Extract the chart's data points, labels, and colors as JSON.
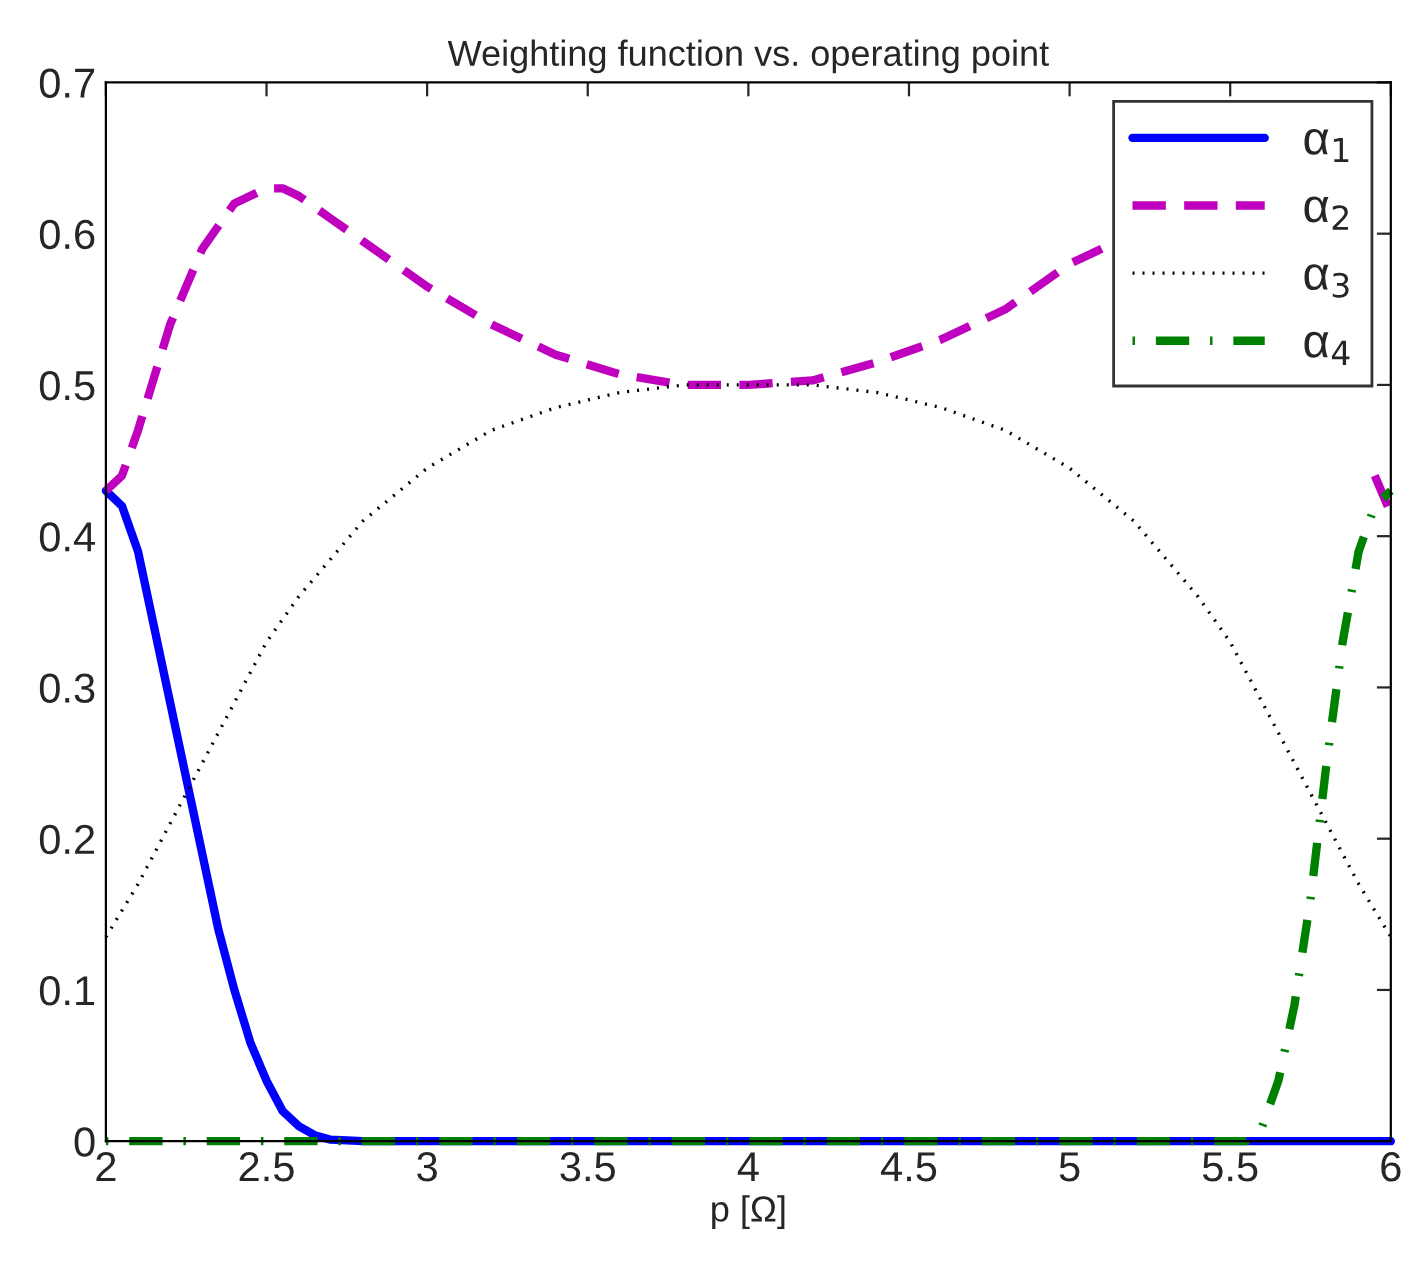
{
  "chart_data": {
    "type": "line",
    "title": "Weighting function vs. operating point",
    "xlabel": "p [Ω]",
    "xlim": [
      2,
      6
    ],
    "xticks": [
      2,
      2.5,
      3,
      3.5,
      4,
      4.5,
      5,
      5.5,
      6
    ],
    "ylim": [
      0,
      0.7
    ],
    "yticks": [
      0,
      0.1,
      0.2,
      0.3,
      0.4,
      0.5,
      0.6,
      0.7
    ],
    "grid": false,
    "legend": "top right",
    "marker": "none",
    "series": [
      {
        "name": "α$_{1}$",
        "color": "#0000ff",
        "line_style": "solid",
        "x": [
          2,
          2.05,
          2.1,
          2.15,
          2.2,
          2.25,
          2.3,
          2.35,
          2.4,
          2.45,
          2.5,
          2.55,
          2.6,
          2.65,
          2.7,
          2.8,
          3,
          4,
          5,
          6
        ],
        "values": [
          0.43,
          0.42,
          0.39,
          0.34,
          0.29,
          0.24,
          0.19,
          0.14,
          0.1,
          0.065,
          0.04,
          0.02,
          0.01,
          0.004,
          0.001,
          0,
          0,
          0,
          0,
          0
        ]
      },
      {
        "name": "α$_{2}$",
        "color": "#bf00bf",
        "line_style": "dashed",
        "x": [
          2,
          2.05,
          2.1,
          2.2,
          2.3,
          2.4,
          2.5,
          2.55,
          2.6,
          2.7,
          2.8,
          3,
          3.2,
          3.4,
          3.6,
          3.8,
          4,
          4.2,
          4.4,
          4.6,
          4.8,
          5,
          5.1,
          5.2,
          5.4,
          5.6,
          5.8,
          5.9,
          5.95,
          6
        ],
        "values": [
          0.43,
          0.44,
          0.47,
          0.54,
          0.59,
          0.62,
          0.63,
          0.63,
          0.625,
          0.61,
          0.595,
          0.565,
          0.54,
          0.52,
          0.507,
          0.5,
          0.5,
          0.503,
          0.515,
          0.53,
          0.55,
          0.58,
          0.59,
          null,
          null,
          null,
          null,
          null,
          0.44,
          0.415
        ]
      },
      {
        "name": "α$_{3}$",
        "color": "#000000",
        "line_style": "dotted",
        "x": [
          2,
          2.1,
          2.2,
          2.3,
          2.4,
          2.5,
          2.6,
          2.8,
          3,
          3.2,
          3.4,
          3.6,
          3.8,
          4,
          4.2,
          4.4,
          4.6,
          4.8,
          5,
          5.2,
          5.4,
          5.5,
          5.6,
          5.7,
          5.8,
          5.9,
          6
        ],
        "values": [
          0.135,
          0.17,
          0.21,
          0.25,
          0.29,
          0.33,
          0.36,
          0.41,
          0.445,
          0.47,
          0.485,
          0.495,
          0.5,
          0.5,
          0.5,
          0.495,
          0.485,
          0.47,
          0.445,
          0.41,
          0.36,
          0.33,
          0.29,
          0.25,
          0.21,
          0.17,
          0.135
        ]
      },
      {
        "name": "α$_{4}$",
        "color": "#008000",
        "line_style": "dashdot",
        "x": [
          2,
          3,
          4,
          5,
          5.55,
          5.6,
          5.65,
          5.7,
          5.75,
          5.8,
          5.85,
          5.9,
          5.95,
          6
        ],
        "values": [
          0,
          0,
          0,
          0,
          0,
          0.01,
          0.04,
          0.09,
          0.16,
          0.25,
          0.33,
          0.39,
          0.42,
          0.43
        ]
      }
    ]
  }
}
